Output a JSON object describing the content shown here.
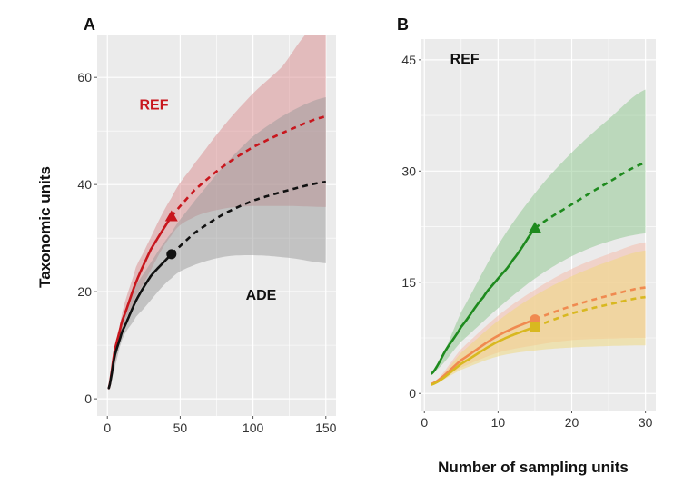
{
  "chart_data": [
    {
      "panel": "A",
      "type": "line",
      "title": "",
      "xlabel": "",
      "ylabel": "Taxonomic units",
      "xlim": [
        -7,
        157
      ],
      "ylim": [
        -3.2,
        68
      ],
      "xticks": [
        0,
        50,
        100,
        150
      ],
      "yticks": [
        0,
        20,
        40,
        60
      ],
      "grid": true,
      "annotations": [
        {
          "text": "REF",
          "x": 22,
          "y": 54,
          "color": "#c8161d"
        },
        {
          "text": "ADE",
          "x": 95,
          "y": 18.5,
          "color": "#111111"
        }
      ],
      "series": [
        {
          "name": "REF",
          "color": "#c8161d",
          "band_color": "#d98b8e",
          "marker": "triangle",
          "observed_end": 44,
          "x": [
            1,
            5,
            10,
            20,
            30,
            44,
            60,
            80,
            100,
            125,
            150
          ],
          "y": [
            2,
            9,
            14.5,
            22,
            28,
            34,
            39,
            43.5,
            47,
            50.2,
            52.7
          ],
          "band_x": [
            1,
            10,
            20,
            44,
            60,
            80,
            100,
            120,
            136,
            150
          ],
          "upper": [
            2,
            16,
            25,
            37.5,
            44,
            51,
            57,
            62,
            68,
            72
          ],
          "lower_x": [
            1,
            10,
            20,
            44,
            60,
            80,
            100,
            125,
            150
          ],
          "lower": [
            2,
            13,
            19.5,
            30.5,
            34,
            35.5,
            36,
            36,
            35.8
          ]
        },
        {
          "name": "ADE",
          "color": "#111111",
          "band_color": "#9a9a9a",
          "marker": "circle",
          "observed_end": 44,
          "x": [
            1,
            5,
            10,
            20,
            30,
            44,
            60,
            80,
            100,
            125,
            150
          ],
          "y": [
            2,
            8,
            12.5,
            18.5,
            23,
            27,
            31,
            34.5,
            37,
            39,
            40.5
          ],
          "band_x": [
            1,
            10,
            20,
            44,
            60,
            80,
            100,
            125,
            150
          ],
          "upper": [
            2,
            14,
            21.5,
            31,
            37,
            43.5,
            49,
            53.5,
            56.3
          ],
          "lower_x": [
            1,
            10,
            20,
            44,
            60,
            80,
            100,
            125,
            150
          ],
          "lower": [
            2,
            11,
            15.5,
            22.5,
            25,
            26.5,
            26.8,
            26.3,
            25.3
          ]
        }
      ]
    },
    {
      "panel": "B",
      "type": "line",
      "title": "",
      "xlabel": "Number of sampling units",
      "ylabel": "",
      "xlim": [
        -0.4,
        31.4
      ],
      "ylim": [
        -2.3,
        47.8
      ],
      "xticks": [
        0,
        10,
        20,
        30
      ],
      "yticks": [
        0,
        15,
        30,
        45
      ],
      "grid": true,
      "annotations": [
        {
          "text": "REF",
          "x": 3.5,
          "y": 44.5,
          "color": "#111111"
        }
      ],
      "series": [
        {
          "name": "green",
          "color": "#1e8a1e",
          "band_color": "#8cc58c",
          "marker": "triangle",
          "observed_end": 15,
          "x": [
            1,
            3,
            5,
            8,
            10,
            12,
            15,
            20,
            25,
            30
          ],
          "y": [
            2.7,
            6,
            9,
            13,
            15.5,
            18,
            22.3,
            25.5,
            28.5,
            31.1
          ],
          "band_x": [
            1,
            5,
            10,
            15,
            20,
            25,
            30
          ],
          "upper": [
            2.7,
            11,
            20,
            27,
            32.5,
            37,
            41
          ],
          "lower_x": [
            1,
            5,
            10,
            15,
            20,
            25,
            30
          ],
          "lower": [
            2.7,
            7,
            11.5,
            15.5,
            18.5,
            20.5,
            21.6
          ]
        },
        {
          "name": "orange",
          "color": "#f08a50",
          "band_color": "#f6b9a8",
          "marker": "circle",
          "observed_end": 15,
          "x": [
            1,
            5,
            10,
            15,
            20,
            25,
            30
          ],
          "y": [
            1.3,
            4.5,
            7.8,
            10,
            11.8,
            13.2,
            14.3
          ],
          "band_x": [
            1,
            5,
            10,
            15,
            20,
            25,
            30
          ],
          "upper": [
            1.3,
            6,
            10.5,
            14,
            16.8,
            18.8,
            20.4
          ],
          "lower_x": [
            1,
            5,
            10,
            15,
            20,
            25,
            30
          ],
          "lower": [
            1.3,
            3.5,
            5.5,
            6.5,
            7.2,
            7.4,
            7.5
          ]
        },
        {
          "name": "yellow",
          "color": "#d8b820",
          "band_color": "#f0d77a",
          "marker": "square",
          "observed_end": 15,
          "x": [
            1,
            5,
            10,
            15,
            20,
            25,
            30
          ],
          "y": [
            1.2,
            4,
            7,
            9,
            10.8,
            12,
            13
          ],
          "band_x": [
            1,
            5,
            10,
            15,
            20,
            25,
            30
          ],
          "upper": [
            1.2,
            5.5,
            9.8,
            13.2,
            15.8,
            17.8,
            19.3
          ],
          "lower_x": [
            1,
            5,
            10,
            15,
            20,
            25,
            30
          ],
          "lower": [
            1.2,
            3.2,
            5,
            5.8,
            6.2,
            6.4,
            6.5
          ]
        }
      ]
    }
  ],
  "labels": {
    "panelA": "A",
    "panelB": "B",
    "ylabel": "Taxonomic units",
    "xlabel": "Number of sampling units"
  },
  "colors": {
    "panel_bg": "#ebebeb",
    "grid": "#ffffff"
  }
}
